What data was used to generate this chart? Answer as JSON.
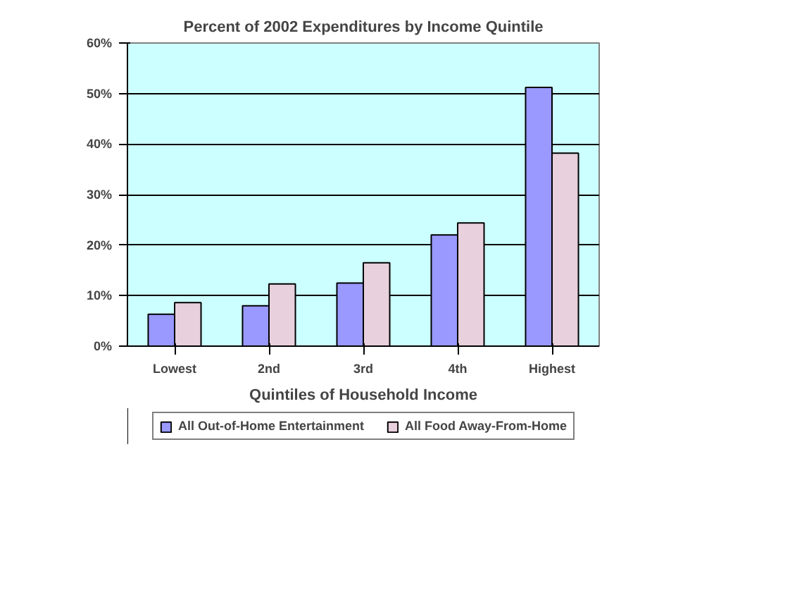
{
  "chart_data": {
    "type": "bar",
    "title": "Percent of 2002 Expenditures by Income Quintile",
    "xlabel": "Quintiles of Household Income",
    "categories": [
      "Lowest",
      "2nd",
      "3rd",
      "4th",
      "Highest"
    ],
    "series": [
      {
        "name": "All Out-of-Home Entertainment",
        "color": "#9999ff",
        "values": [
          6.3,
          8.0,
          12.5,
          22.0,
          51.2
        ]
      },
      {
        "name": "All Food Away-From-Home",
        "color": "#e8d0dc",
        "values": [
          8.6,
          12.3,
          16.5,
          24.4,
          38.2
        ]
      }
    ],
    "ylim": [
      0,
      60
    ],
    "yticks": [
      {
        "value": 0,
        "label": "0%"
      },
      {
        "value": 10,
        "label": "10%"
      },
      {
        "value": 20,
        "label": "20%"
      },
      {
        "value": 30,
        "label": "30%"
      },
      {
        "value": 40,
        "label": "40%"
      },
      {
        "value": 50,
        "label": "50%"
      },
      {
        "value": 60,
        "label": "60%"
      }
    ],
    "grid": "y",
    "legend": "bottom"
  }
}
